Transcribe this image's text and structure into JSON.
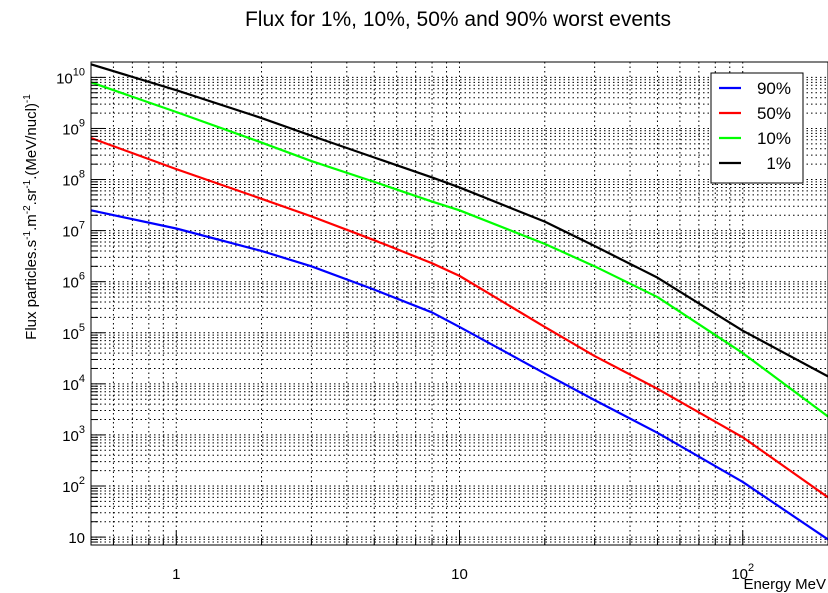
{
  "chart_data": {
    "type": "line",
    "title": "Flux for 1%, 10%, 50% and 90% worst events",
    "xlabel": "Energy  MeV",
    "ylabel_parts": [
      "Flux  particles.s",
      "-1",
      ".m",
      "-2",
      ".sr",
      "-1",
      ".(MeV/nucl)",
      "-1"
    ],
    "x_scale": "log",
    "y_scale": "log",
    "xlim": [
      0.5,
      200
    ],
    "ylim": [
      7,
      20000000000
    ],
    "grid": true,
    "legend_position": "top-right",
    "x_tick_labels": [
      {
        "value": 1,
        "base": "1",
        "exp": ""
      },
      {
        "value": 10,
        "base": "10",
        "exp": ""
      },
      {
        "value": 100,
        "base": "10",
        "exp": "2"
      }
    ],
    "y_tick_labels": [
      {
        "value": 10,
        "base": "10",
        "exp": ""
      },
      {
        "value": 100,
        "base": "10",
        "exp": "2"
      },
      {
        "value": 1000,
        "base": "10",
        "exp": "3"
      },
      {
        "value": 10000,
        "base": "10",
        "exp": "4"
      },
      {
        "value": 100000,
        "base": "10",
        "exp": "5"
      },
      {
        "value": 1000000,
        "base": "10",
        "exp": "6"
      },
      {
        "value": 10000000,
        "base": "10",
        "exp": "7"
      },
      {
        "value": 100000000,
        "base": "10",
        "exp": "8"
      },
      {
        "value": 1000000000,
        "base": "10",
        "exp": "9"
      },
      {
        "value": 10000000000,
        "base": "10",
        "exp": "10"
      }
    ],
    "x": [
      0.5,
      1,
      2,
      3,
      5,
      8,
      10,
      20,
      30,
      50,
      100,
      200
    ],
    "series": [
      {
        "name": "90%",
        "color": "#0000ff",
        "values": [
          25000000.0,
          11000000.0,
          4000000.0,
          2000000.0,
          700000.0,
          250000.0,
          130000.0,
          16000.0,
          4800.0,
          1100.0,
          120.0,
          9
        ]
      },
      {
        "name": "50%",
        "color": "#ff0000",
        "values": [
          650000000.0,
          160000000.0,
          42000000.0,
          19000000.0,
          6500000.0,
          2300000.0,
          1300000.0,
          130000.0,
          35000.0,
          8000.0,
          900.0,
          60
        ]
      },
      {
        "name": "10%",
        "color": "#00ff00",
        "values": [
          8000000000.0,
          2100000000.0,
          530000000.0,
          230000000.0,
          90000000.0,
          37000000.0,
          25000000.0,
          5500000.0,
          2000000.0,
          500000.0,
          40000.0,
          2300.0
        ]
      },
      {
        "name": "1%",
        "color": "#000000",
        "values": [
          18000000000.0,
          5600000000.0,
          1600000000.0,
          720000000.0,
          270000000.0,
          110000000.0,
          70000000.0,
          15000000.0,
          5000000.0,
          1200000.0,
          110000.0,
          14000.0
        ]
      }
    ]
  }
}
